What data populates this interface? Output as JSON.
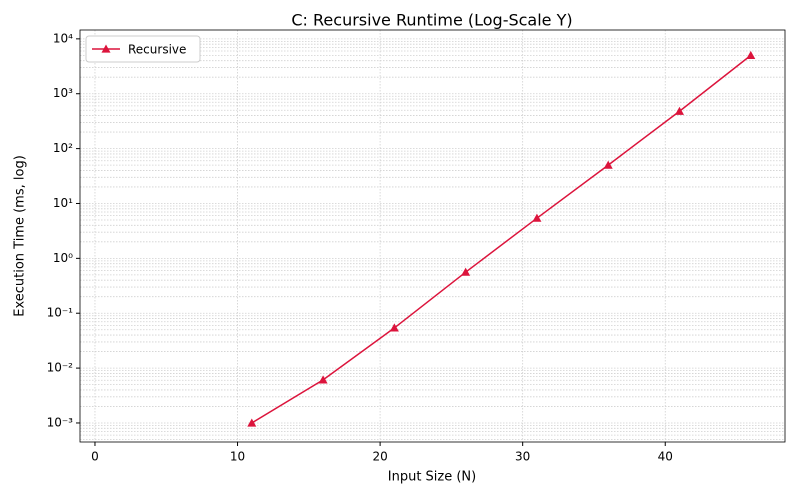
{
  "chart_data": {
    "type": "line",
    "title": "C: Recursive Runtime (Log-Scale Y)",
    "x_label": "Input Size (N)",
    "y_label": "Execution Time (ms, log)",
    "x": [
      11,
      16,
      21,
      26,
      31,
      36,
      41,
      46
    ],
    "series": [
      {
        "name": "Recursive",
        "color": "#dc143c",
        "marker": "triangle",
        "values": [
          0.001,
          0.0061,
          0.054,
          0.56,
          5.4,
          50,
          480,
          5000
        ]
      }
    ],
    "xlim": [
      -1.05,
      48.4
    ],
    "xticks": [
      0,
      10,
      20,
      30,
      40
    ],
    "ylim": [
      0.00045,
      14500
    ],
    "y_scale": "log",
    "yticks": [
      {
        "value": 0.001,
        "label": "10⁻³"
      },
      {
        "value": 0.01,
        "label": "10⁻²"
      },
      {
        "value": 0.1,
        "label": "10⁻¹"
      },
      {
        "value": 1,
        "label": "10⁰"
      },
      {
        "value": 10,
        "label": "10¹"
      },
      {
        "value": 100,
        "label": "10²"
      },
      {
        "value": 1000,
        "label": "10³"
      },
      {
        "value": 10000,
        "label": "10⁴"
      }
    ],
    "grid": true,
    "minor_grid": true,
    "legend_loc": "upper left"
  }
}
